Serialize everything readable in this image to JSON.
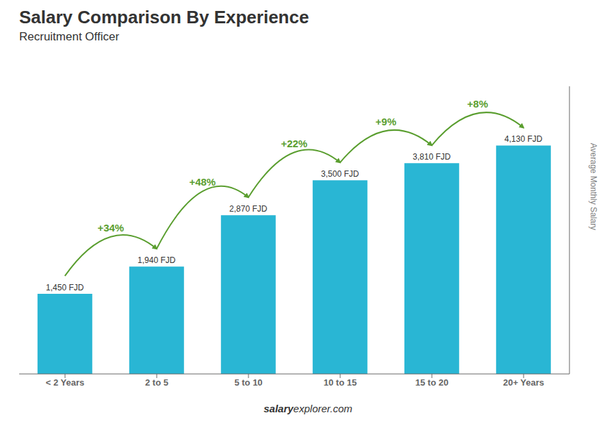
{
  "chart_data": {
    "type": "bar",
    "title": "Salary Comparison By Experience",
    "subtitle": "Recruitment Officer",
    "categories": [
      "< 2 Years",
      "2 to 5",
      "5 to 10",
      "10 to 15",
      "15 to 20",
      "20+ Years"
    ],
    "values": [
      1450,
      1940,
      2870,
      3500,
      3810,
      4130
    ],
    "value_labels": [
      "1,450 FJD",
      "1,940 FJD",
      "2,870 FJD",
      "3,500 FJD",
      "3,810 FJD",
      "4,130 FJD"
    ],
    "data_labels": true,
    "color": "#29b6d4",
    "ylabel": "Average Monthly Salary",
    "ylim": [
      0,
      5200
    ],
    "tick_labels": "x",
    "grid": false,
    "annotations": [
      "+34%",
      "+48%",
      "+22%",
      "+9%",
      "+8%"
    ],
    "footer": [
      "salary",
      "explorer.com"
    ]
  }
}
